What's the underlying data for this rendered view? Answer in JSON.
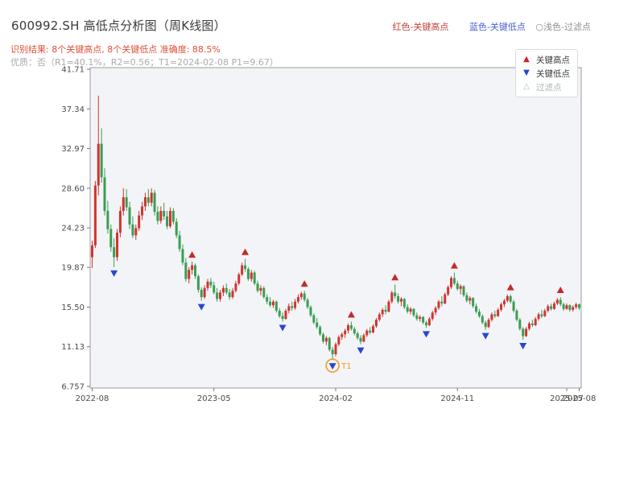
{
  "header": {
    "title": "600992.SH 高低点分析图（周K线图）",
    "legend": [
      {
        "label": "红色-关键高点",
        "color": "#c4403a"
      },
      {
        "label": "蓝色-关键低点",
        "color": "#4a5fd0"
      },
      {
        "label": "○浅色-过滤点",
        "color": "#8f8f8f"
      }
    ],
    "result_line": "识别结果: 8个关键高点, 8个关键低点  准确度: 88.5%",
    "result_color": "#de4f38",
    "quality_line": "优质：否（R1=40.1%，R2=0.56；T1=2024-02-08 P1=9.67）",
    "quality_color": "#aaaaaa"
  },
  "chart_legend": {
    "items": [
      {
        "label": "关键高点",
        "glyph": "▲",
        "color": "#c62828"
      },
      {
        "label": "关键低点",
        "glyph": "▼",
        "color": "#2847cf"
      },
      {
        "label": "过滤点",
        "glyph": "△",
        "color": "#b5b5b5"
      }
    ]
  },
  "chart_data": {
    "type": "candlestick",
    "title": "600992.SH 高低点分析图（周K线图）",
    "symbol": "600992.SH",
    "freq": "weekly",
    "x_start": "2022-08",
    "ylim": [
      6.58,
      41.89
    ],
    "plot_bg": "#f3f4f8",
    "up_color": "#d0342f",
    "down_color": "#3a9d52",
    "high_marker_color": "#c62828",
    "low_marker_color": "#2847cf",
    "y_ticks": [
      {
        "value": 41.71,
        "label": "41.71"
      },
      {
        "value": 37.34,
        "label": "37.34"
      },
      {
        "value": 32.97,
        "label": "32.97"
      },
      {
        "value": 28.6,
        "label": "28.60"
      },
      {
        "value": 24.23,
        "label": "24.23"
      },
      {
        "value": 19.87,
        "label": "19.87"
      },
      {
        "value": 15.5,
        "label": "15.50"
      },
      {
        "value": 11.13,
        "label": "11.13"
      },
      {
        "value": 6.757,
        "label": "6.757"
      }
    ],
    "x_ticks": [
      {
        "index": 0,
        "label": "2022-08"
      },
      {
        "index": 39,
        "label": "2023-05"
      },
      {
        "index": 78,
        "label": "2024-02"
      },
      {
        "index": 117,
        "label": "2024-11"
      },
      {
        "index": 152,
        "label": "2025-07"
      },
      {
        "index": 156,
        "label": "2025-08"
      }
    ],
    "candles": [
      [
        21.0,
        22.8,
        19.8,
        22.3
      ],
      [
        22.3,
        29.4,
        22.0,
        28.9
      ],
      [
        28.9,
        38.8,
        27.8,
        33.5
      ],
      [
        33.5,
        35.2,
        29.2,
        29.8
      ],
      [
        29.8,
        30.8,
        25.6,
        26.1
      ],
      [
        26.1,
        27.2,
        23.6,
        24.1
      ],
      [
        24.1,
        24.6,
        21.6,
        22.1
      ],
      [
        22.1,
        23.1,
        19.9,
        21.0
      ],
      [
        21.0,
        24.1,
        20.6,
        23.7
      ],
      [
        23.7,
        26.6,
        23.2,
        26.1
      ],
      [
        26.1,
        28.6,
        25.6,
        27.6
      ],
      [
        27.6,
        28.5,
        26.1,
        26.5
      ],
      [
        26.5,
        27.1,
        24.1,
        24.6
      ],
      [
        24.6,
        25.5,
        23.1,
        23.4
      ],
      [
        23.4,
        24.6,
        22.9,
        24.2
      ],
      [
        24.2,
        26.1,
        23.9,
        25.6
      ],
      [
        25.6,
        27.1,
        25.1,
        26.6
      ],
      [
        26.6,
        28.1,
        26.1,
        27.6
      ],
      [
        27.6,
        28.5,
        26.6,
        27.0
      ],
      [
        27.0,
        28.6,
        26.6,
        28.1
      ],
      [
        28.1,
        28.4,
        25.6,
        26.0
      ],
      [
        26.0,
        26.6,
        24.6,
        25.0
      ],
      [
        25.0,
        26.6,
        24.7,
        26.1
      ],
      [
        26.1,
        27.0,
        25.1,
        25.5
      ],
      [
        25.5,
        26.1,
        24.1,
        24.4
      ],
      [
        24.4,
        26.5,
        24.2,
        26.1
      ],
      [
        26.1,
        26.4,
        24.6,
        24.9
      ],
      [
        24.9,
        25.3,
        23.1,
        23.4
      ],
      [
        23.4,
        23.9,
        21.6,
        21.9
      ],
      [
        21.9,
        22.4,
        20.1,
        20.4
      ],
      [
        20.4,
        20.9,
        18.3,
        18.6
      ],
      [
        18.6,
        19.9,
        18.1,
        19.6
      ],
      [
        19.6,
        20.5,
        19.1,
        20.1
      ],
      [
        20.1,
        20.3,
        18.6,
        18.9
      ],
      [
        18.9,
        19.1,
        17.1,
        17.4
      ],
      [
        17.4,
        17.7,
        16.2,
        16.6
      ],
      [
        16.6,
        17.9,
        16.4,
        17.6
      ],
      [
        17.6,
        18.6,
        17.3,
        18.3
      ],
      [
        18.3,
        18.7,
        17.6,
        17.9
      ],
      [
        17.9,
        18.3,
        16.9,
        17.1
      ],
      [
        17.1,
        17.6,
        16.1,
        16.4
      ],
      [
        16.4,
        17.4,
        16.1,
        17.1
      ],
      [
        17.1,
        17.9,
        16.7,
        17.6
      ],
      [
        17.6,
        18.1,
        16.9,
        17.1
      ],
      [
        17.1,
        17.5,
        16.3,
        16.6
      ],
      [
        16.6,
        17.6,
        16.4,
        17.3
      ],
      [
        17.3,
        18.4,
        17.1,
        18.1
      ],
      [
        18.1,
        19.3,
        17.9,
        19.1
      ],
      [
        19.1,
        20.4,
        18.9,
        20.1
      ],
      [
        20.1,
        20.8,
        19.4,
        19.7
      ],
      [
        19.7,
        19.9,
        18.4,
        18.6
      ],
      [
        18.6,
        19.6,
        18.3,
        19.3
      ],
      [
        19.3,
        19.5,
        17.9,
        18.1
      ],
      [
        18.1,
        18.4,
        17.1,
        17.3
      ],
      [
        17.3,
        17.9,
        16.8,
        17.6
      ],
      [
        17.6,
        17.8,
        16.4,
        16.6
      ],
      [
        16.6,
        16.9,
        15.8,
        16.1
      ],
      [
        16.1,
        16.6,
        15.5,
        15.7
      ],
      [
        15.7,
        16.3,
        15.4,
        16.1
      ],
      [
        16.1,
        16.2,
        14.9,
        15.1
      ],
      [
        15.1,
        15.4,
        14.3,
        14.5
      ],
      [
        14.5,
        14.9,
        13.9,
        14.2
      ],
      [
        14.2,
        15.3,
        14.1,
        15.1
      ],
      [
        15.1,
        15.9,
        14.8,
        15.6
      ],
      [
        15.6,
        16.1,
        15.1,
        15.4
      ],
      [
        15.4,
        16.4,
        15.2,
        16.1
      ],
      [
        16.1,
        16.9,
        15.9,
        16.6
      ],
      [
        16.6,
        17.2,
        16.3,
        17.0
      ],
      [
        17.0,
        17.3,
        16.1,
        16.3
      ],
      [
        16.3,
        16.5,
        15.3,
        15.5
      ],
      [
        15.5,
        15.7,
        14.4,
        14.6
      ],
      [
        14.6,
        14.8,
        13.6,
        13.8
      ],
      [
        13.8,
        14.3,
        13.1,
        13.3
      ],
      [
        13.3,
        13.5,
        12.3,
        12.5
      ],
      [
        12.5,
        12.7,
        11.5,
        11.7
      ],
      [
        11.7,
        12.3,
        11.3,
        12.1
      ],
      [
        12.1,
        12.2,
        10.6,
        10.8
      ],
      [
        10.8,
        11.1,
        9.67,
        10.3
      ],
      [
        10.3,
        11.6,
        10.1,
        11.4
      ],
      [
        11.4,
        12.4,
        11.2,
        12.2
      ],
      [
        12.2,
        12.7,
        11.9,
        12.5
      ],
      [
        12.5,
        13.1,
        12.1,
        12.9
      ],
      [
        12.9,
        13.7,
        12.6,
        13.5
      ],
      [
        13.5,
        13.9,
        12.9,
        13.1
      ],
      [
        13.1,
        13.3,
        12.4,
        12.6
      ],
      [
        12.6,
        12.8,
        11.9,
        12.1
      ],
      [
        12.1,
        12.4,
        11.4,
        11.7
      ],
      [
        11.7,
        12.6,
        11.6,
        12.4
      ],
      [
        12.4,
        13.1,
        12.2,
        12.9
      ],
      [
        12.9,
        13.3,
        12.5,
        12.7
      ],
      [
        12.7,
        13.6,
        12.6,
        13.4
      ],
      [
        13.4,
        14.3,
        13.2,
        14.1
      ],
      [
        14.1,
        14.9,
        13.9,
        14.7
      ],
      [
        14.7,
        15.4,
        14.4,
        15.2
      ],
      [
        15.2,
        15.7,
        14.7,
        15.0
      ],
      [
        15.0,
        16.3,
        14.9,
        16.1
      ],
      [
        16.1,
        17.3,
        15.9,
        17.1
      ],
      [
        17.1,
        18.0,
        16.4,
        16.7
      ],
      [
        16.7,
        17.0,
        15.9,
        16.1
      ],
      [
        16.1,
        16.6,
        15.6,
        16.4
      ],
      [
        16.4,
        16.5,
        15.3,
        15.5
      ],
      [
        15.5,
        15.8,
        14.8,
        15.0
      ],
      [
        15.0,
        15.5,
        14.7,
        15.3
      ],
      [
        15.3,
        15.4,
        14.4,
        14.6
      ],
      [
        14.6,
        14.9,
        14.0,
        14.2
      ],
      [
        14.2,
        14.6,
        13.9,
        14.4
      ],
      [
        14.4,
        14.5,
        13.6,
        13.8
      ],
      [
        13.8,
        14.0,
        13.2,
        13.5
      ],
      [
        13.5,
        14.4,
        13.4,
        14.2
      ],
      [
        14.2,
        15.1,
        14.0,
        14.9
      ],
      [
        14.9,
        15.6,
        14.6,
        15.4
      ],
      [
        15.4,
        16.3,
        15.2,
        16.1
      ],
      [
        16.1,
        16.7,
        15.6,
        15.9
      ],
      [
        15.9,
        17.1,
        15.8,
        16.9
      ],
      [
        16.9,
        17.9,
        16.7,
        17.7
      ],
      [
        17.7,
        18.9,
        17.5,
        18.7
      ],
      [
        18.7,
        19.3,
        17.9,
        18.1
      ],
      [
        18.1,
        18.4,
        17.3,
        17.5
      ],
      [
        17.5,
        18.0,
        16.9,
        17.8
      ],
      [
        17.8,
        17.9,
        16.6,
        16.8
      ],
      [
        16.8,
        17.1,
        16.0,
        16.2
      ],
      [
        16.2,
        16.7,
        15.8,
        16.5
      ],
      [
        16.5,
        16.6,
        15.4,
        15.6
      ],
      [
        15.6,
        15.9,
        14.8,
        15.0
      ],
      [
        15.0,
        15.3,
        14.3,
        14.5
      ],
      [
        14.5,
        14.7,
        13.6,
        13.8
      ],
      [
        13.8,
        14.0,
        13.0,
        13.3
      ],
      [
        13.3,
        14.3,
        13.2,
        14.1
      ],
      [
        14.1,
        14.9,
        13.9,
        14.7
      ],
      [
        14.7,
        15.1,
        14.3,
        14.5
      ],
      [
        14.5,
        15.4,
        14.4,
        15.2
      ],
      [
        15.2,
        16.0,
        15.0,
        15.8
      ],
      [
        15.8,
        16.4,
        15.5,
        16.2
      ],
      [
        16.2,
        16.9,
        16.0,
        16.7
      ],
      [
        16.7,
        16.9,
        15.9,
        16.1
      ],
      [
        16.1,
        16.3,
        14.9,
        15.1
      ],
      [
        15.1,
        15.3,
        13.9,
        14.1
      ],
      [
        14.1,
        14.3,
        12.9,
        13.1
      ],
      [
        13.1,
        13.3,
        11.9,
        12.3
      ],
      [
        12.3,
        13.3,
        12.2,
        13.1
      ],
      [
        13.1,
        13.9,
        12.9,
        13.7
      ],
      [
        13.7,
        14.1,
        13.3,
        13.5
      ],
      [
        13.5,
        14.4,
        13.4,
        14.2
      ],
      [
        14.2,
        14.9,
        14.0,
        14.7
      ],
      [
        14.7,
        15.2,
        14.3,
        14.5
      ],
      [
        14.5,
        15.3,
        14.4,
        15.1
      ],
      [
        15.1,
        15.8,
        14.9,
        15.6
      ],
      [
        15.6,
        15.9,
        15.1,
        15.3
      ],
      [
        15.3,
        16.1,
        15.2,
        15.9
      ],
      [
        15.9,
        16.5,
        15.7,
        16.3
      ],
      [
        16.3,
        16.6,
        15.6,
        15.8
      ],
      [
        15.8,
        16.0,
        15.1,
        15.3
      ],
      [
        15.3,
        15.9,
        15.2,
        15.7
      ],
      [
        15.7,
        15.8,
        15.0,
        15.2
      ],
      [
        15.2,
        15.7,
        15.0,
        15.5
      ],
      [
        15.5,
        16.0,
        15.3,
        15.8
      ],
      [
        15.8,
        15.9,
        15.2,
        15.4
      ]
    ],
    "key_highs": [
      {
        "index": 32,
        "price": 20.5
      },
      {
        "index": 49,
        "price": 20.8
      },
      {
        "index": 68,
        "price": 17.3
      },
      {
        "index": 83,
        "price": 13.9
      },
      {
        "index": 97,
        "price": 18.0
      },
      {
        "index": 116,
        "price": 19.3
      },
      {
        "index": 134,
        "price": 16.9
      },
      {
        "index": 150,
        "price": 16.6
      }
    ],
    "key_lows": [
      {
        "index": 7,
        "price": 19.9
      },
      {
        "index": 35,
        "price": 16.2
      },
      {
        "index": 61,
        "price": 13.9
      },
      {
        "index": 77,
        "price": 9.67
      },
      {
        "index": 86,
        "price": 11.4
      },
      {
        "index": 107,
        "price": 13.2
      },
      {
        "index": 126,
        "price": 13.0
      },
      {
        "index": 138,
        "price": 11.9
      }
    ],
    "filtered_points": [],
    "t1": {
      "index": 77,
      "price": 9.67,
      "label": "T1",
      "color": "#f59a23"
    }
  }
}
